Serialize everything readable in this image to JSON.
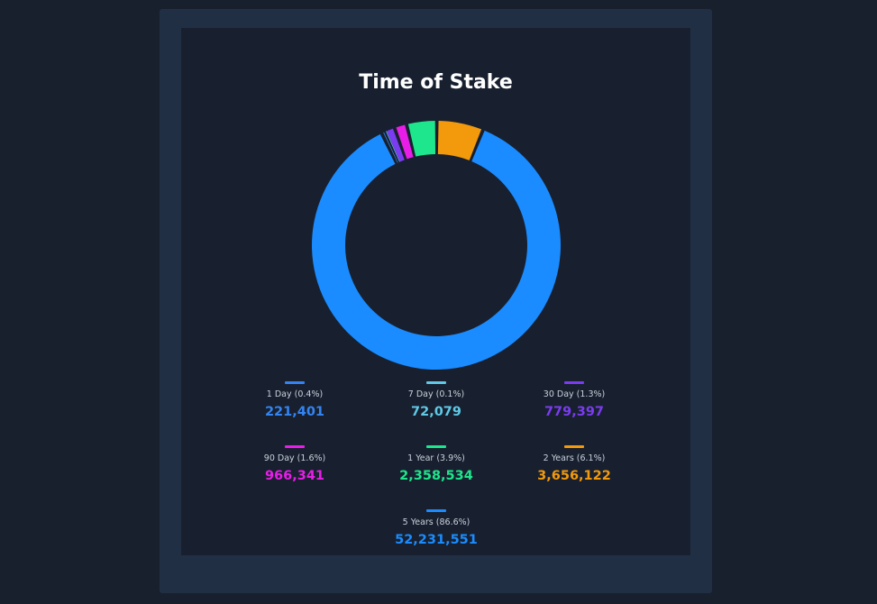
{
  "page": {
    "background_color": "#18202e",
    "panel_color": "#212f45",
    "card_color": "#18202f"
  },
  "chart_data": {
    "type": "pie",
    "style": "donut",
    "title": "Time of Stake",
    "categories": [
      "1 Day",
      "7 Day",
      "30 Day",
      "90 Day",
      "1 Year",
      "2 Years",
      "5 Years"
    ],
    "labels": [
      "1 Day (0.4%)",
      "7 Day (0.1%)",
      "30 Day (1.3%)",
      "90 Day (1.6%)",
      "1 Year (3.9%)",
      "2 Years (6.1%)",
      "5 Years (86.6%)"
    ],
    "values": [
      221401,
      72079,
      779397,
      966341,
      2358534,
      3656122,
      52231551
    ],
    "value_labels": [
      "221,401",
      "72,079",
      "779,397",
      "966,341",
      "2,358,534",
      "3,656,122",
      "52,231,551"
    ],
    "percents": [
      0.4,
      0.1,
      1.3,
      1.6,
      3.9,
      6.1,
      86.6
    ],
    "colors": [
      "#3384f2",
      "#5fc9e6",
      "#7b3bf0",
      "#e81ee8",
      "#1ee68c",
      "#f29a0c",
      "#1a8cff"
    ],
    "legend": "bottom"
  }
}
